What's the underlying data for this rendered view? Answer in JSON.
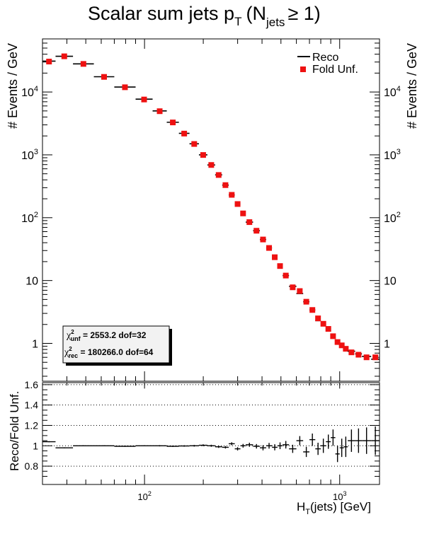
{
  "chart_data": [
    {
      "type": "scatter",
      "title": "Scalar sum jets p",
      "title_sub": "T",
      "title_paren": "(N",
      "title_paren_sub": "jets",
      "title_tail": "≥ 1)",
      "ylabel": "# Events / GeV",
      "yscale": "log",
      "xscale": "log",
      "xlim": [
        30,
        1600
      ],
      "ylim": [
        0.25,
        70000
      ],
      "y_ticklabels": [
        {
          "v": 1,
          "label": "1"
        },
        {
          "v": 10,
          "label": "10"
        },
        {
          "v": 100,
          "label": "10",
          "exp": "2"
        },
        {
          "v": 1000,
          "label": "10",
          "exp": "3"
        },
        {
          "v": 10000,
          "label": "10",
          "exp": "4"
        }
      ],
      "legend": {
        "position": "top-right",
        "entries": [
          "Reco",
          "Fold Unf."
        ]
      },
      "chi2_box": {
        "unf": {
          "sym": "χ",
          "sup": "2",
          "sub": "unf",
          "value": "2553.2",
          "dof": "dof=32"
        },
        "rec": {
          "sym": "χ",
          "sup": "2",
          "sub": "rec",
          "value": "180266.0",
          "dof": "dof=64"
        }
      },
      "colors": {
        "reco": "#000000",
        "fold_unf": "#ee1111"
      },
      "x_lo": [
        30,
        35,
        43,
        55,
        70,
        90,
        110,
        130,
        150,
        170,
        190,
        210,
        230,
        250,
        270,
        290,
        310,
        330,
        360,
        390,
        420,
        450,
        480,
        510,
        550,
        600,
        650,
        700,
        750,
        800,
        850,
        900,
        950,
        1000,
        1050,
        1100,
        1200,
        1300,
        1450
      ],
      "x_hi": [
        35,
        43,
        55,
        70,
        90,
        110,
        130,
        150,
        170,
        190,
        210,
        230,
        250,
        270,
        290,
        310,
        330,
        360,
        390,
        420,
        450,
        480,
        510,
        550,
        600,
        650,
        700,
        750,
        800,
        850,
        900,
        950,
        1000,
        1050,
        1100,
        1200,
        1300,
        1450,
        1600
      ],
      "series": [
        {
          "name": "Reco",
          "values": [
            31000,
            37000,
            28000,
            17500,
            12000,
            7700,
            5000,
            3300,
            2200,
            1500,
            1000,
            690,
            480,
            330,
            230,
            165,
            118,
            85,
            62,
            45,
            33,
            24,
            17,
            12,
            8.1,
            6.2,
            4.6,
            3.4,
            2.3,
            2.1,
            1.7,
            1.3,
            1.1,
            0.95,
            0.85,
            0.75,
            0.68,
            0.62,
            0.56
          ]
        },
        {
          "name": "Fold Unf.",
          "values": [
            30500,
            37000,
            28000,
            17400,
            11900,
            7600,
            4950,
            3280,
            2180,
            1490,
            995,
            690,
            478,
            330,
            231,
            165,
            117,
            85,
            62,
            45,
            33,
            23.5,
            17,
            12,
            7.8,
            6.8,
            4.6,
            3.4,
            2.5,
            2.05,
            1.7,
            1.3,
            1.05,
            0.93,
            0.82,
            0.72,
            0.66,
            0.6,
            0.6
          ]
        }
      ]
    },
    {
      "type": "scatter",
      "ylabel": "Reco/Fold Unf.",
      "xlabel": "H",
      "xlabel_sub": "T",
      "xlabel_tail": "(jets) [GeV]",
      "xscale": "log",
      "xlim": [
        30,
        1600
      ],
      "ylim": [
        0.62,
        1.62
      ],
      "y_ticklabels": [
        {
          "v": 0.8,
          "label": "0.8"
        },
        {
          "v": 1.0,
          "label": "1"
        },
        {
          "v": 1.2,
          "label": "1.2"
        },
        {
          "v": 1.4,
          "label": "1.4"
        },
        {
          "v": 1.6,
          "label": "1.6"
        }
      ],
      "x_ticklabels": [
        {
          "v": 100,
          "label": "10",
          "exp": "2"
        },
        {
          "v": 1000,
          "label": "10",
          "exp": "3"
        }
      ],
      "grid": {
        "horizontal_dotted": [
          0.8,
          1.0,
          1.2,
          1.4,
          1.6
        ]
      },
      "x_lo": [
        30,
        35,
        43,
        55,
        70,
        90,
        110,
        130,
        150,
        170,
        190,
        210,
        230,
        250,
        270,
        290,
        310,
        330,
        360,
        390,
        420,
        450,
        480,
        510,
        550,
        600,
        650,
        700,
        750,
        800,
        850,
        900,
        950,
        1000,
        1050,
        1100,
        1200,
        1300,
        1450
      ],
      "x_hi": [
        35,
        43,
        55,
        70,
        90,
        110,
        130,
        150,
        170,
        190,
        210,
        230,
        250,
        270,
        290,
        310,
        330,
        360,
        390,
        420,
        450,
        480,
        510,
        550,
        600,
        650,
        700,
        750,
        800,
        850,
        900,
        950,
        1000,
        1050,
        1100,
        1200,
        1300,
        1450,
        1600
      ],
      "series": [
        {
          "name": "Reco/Fold Unf.",
          "values": [
            1.04,
            0.98,
            1.0,
            1.0,
            0.995,
            1.0,
            1.0,
            0.995,
            0.998,
            1.0,
            1.005,
            1.0,
            0.99,
            0.985,
            1.02,
            0.97,
            1.0,
            1.01,
            0.995,
            0.98,
            1.0,
            0.985,
            1.0,
            1.01,
            0.97,
            1.05,
            0.94,
            1.06,
            0.97,
            1.0,
            1.04,
            1.08,
            0.92,
            0.98,
            0.99,
            1.05,
            1.05,
            1.05,
            1.05
          ],
          "errors": [
            0.005,
            0.005,
            0.005,
            0.005,
            0.005,
            0.005,
            0.006,
            0.006,
            0.007,
            0.008,
            0.009,
            0.01,
            0.011,
            0.012,
            0.014,
            0.016,
            0.018,
            0.02,
            0.022,
            0.025,
            0.028,
            0.03,
            0.033,
            0.037,
            0.04,
            0.045,
            0.05,
            0.06,
            0.06,
            0.07,
            0.07,
            0.08,
            0.08,
            0.09,
            0.1,
            0.11,
            0.12,
            0.13,
            0.14
          ]
        }
      ]
    }
  ]
}
